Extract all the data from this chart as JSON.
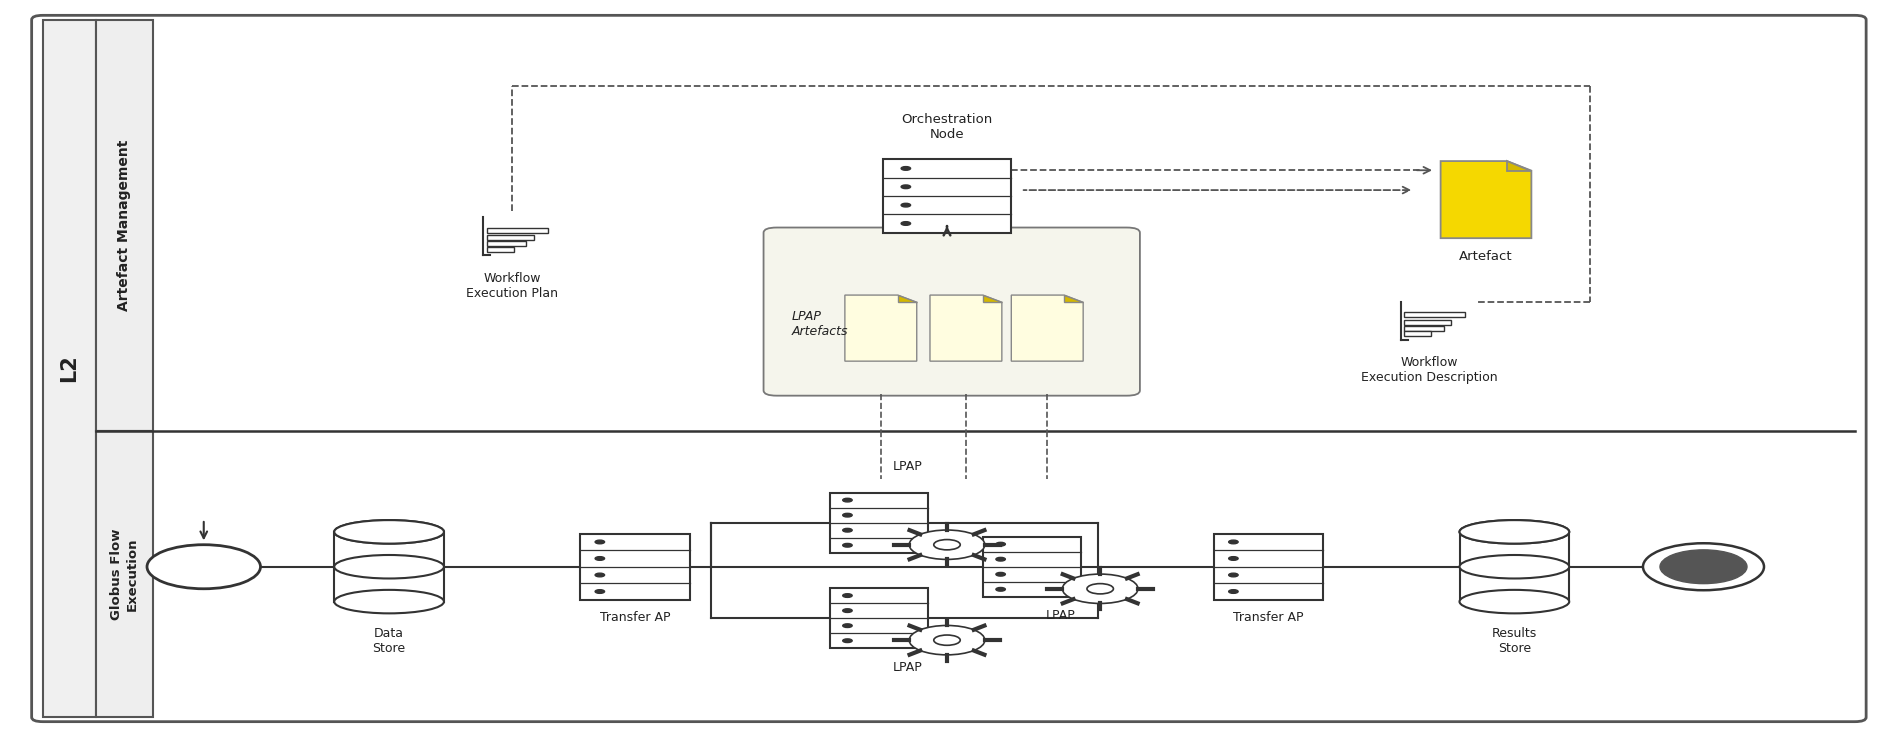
{
  "fig_width": 18.94,
  "fig_height": 7.37,
  "dpi": 100,
  "bg_color": "#ffffff",
  "l2_label": "L2",
  "artefact_mgmt_label": "Artefact Management",
  "globus_flow_label": "Globus Flow\nExecution",
  "orch_node_label": "Orchestration\nNode",
  "artefact_label": "Artefact",
  "wf_plan_label": "Workflow\nExecution Plan",
  "wf_desc_label": "Workflow\nExecution Description",
  "lpap_artefacts_label": "LPAP\nArtefacts",
  "data_store_label": "Data\nStore",
  "transfer_ap1_label": "Transfer AP",
  "transfer_ap2_label": "Transfer AP",
  "results_store_label": "Results\nStore",
  "lpap_top_label": "LPAP",
  "lpap_mid_label": "LPAP",
  "lpap_bot_label": "LPAP",
  "colors": {
    "outer_border": "#555555",
    "lane_border": "#555555",
    "divider": "#333333",
    "label_bg_l2": "#f0f0f0",
    "label_bg_lane": "#eeeeee",
    "top_lane_bg": "#fafafa",
    "bot_lane_bg": "#ffffff",
    "dashed": "#555555",
    "solid": "#333333",
    "doc_fill_yellow": "#f5d800",
    "doc_fill_light": "#fffde0",
    "doc_fold": "#c8a800",
    "doc_stroke": "#888888",
    "server_fill": "#ffffff",
    "server_stroke": "#333333",
    "db_fill": "#ffffff",
    "db_stroke": "#333333",
    "gear_fill": "#ffffff",
    "gear_stroke": "#333333",
    "circle_fill": "#ffffff",
    "circle_stroke": "#333333",
    "end_inner": "#555555",
    "wf_icon_fill": "#ffffff",
    "wf_icon_stroke": "#333333",
    "lpap_box_fill": "#f5f5ec",
    "lpap_box_stroke": "#777777",
    "text": "#222222"
  }
}
